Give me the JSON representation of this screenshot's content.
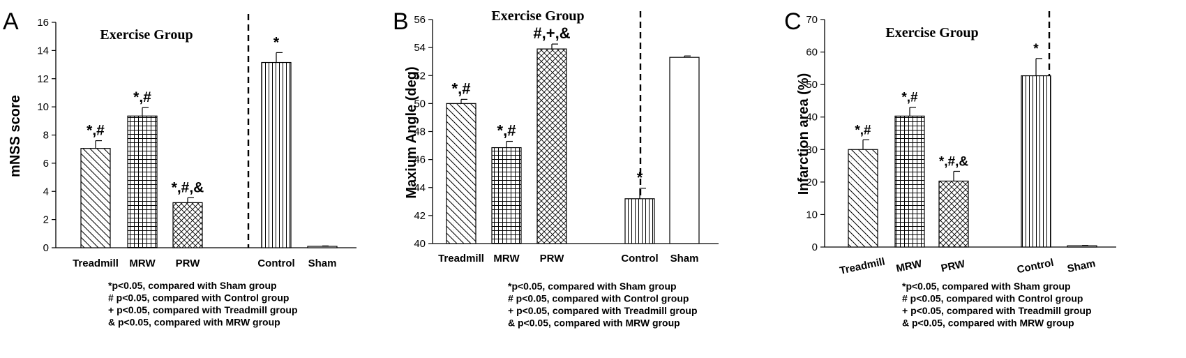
{
  "footnotes": [
    "*p<0.05, compared with Sham group",
    "# p<0.05, compared with Control group",
    "+ p<0.05, compared with Treadmill group",
    "& p<0.05, compared with MRW group"
  ],
  "chart_data": [
    {
      "panel": "A",
      "type": "bar",
      "title": "",
      "group_title": "Exercise Group",
      "ylabel": "mNSS score",
      "xlabel": "",
      "ylim": [
        0,
        16
      ],
      "yticks": [
        0,
        2,
        4,
        6,
        8,
        10,
        12,
        14,
        16
      ],
      "categories": [
        "Treadmill",
        "MRW",
        "PRW",
        "Control",
        "Sham"
      ],
      "values": [
        7.05,
        9.35,
        3.2,
        13.15,
        0.1
      ],
      "errors": [
        0.55,
        0.6,
        0.35,
        0.7,
        0.03
      ],
      "significance": [
        "*,#",
        "*,#",
        "*,#,&",
        "*",
        ""
      ],
      "patterns": [
        "diag",
        "grid",
        "crosshatch",
        "vert",
        "none"
      ]
    },
    {
      "panel": "B",
      "type": "bar",
      "title": "",
      "group_title": "Exercise Group",
      "ylabel": "Maxium Angle (deg)",
      "xlabel": "",
      "ylim": [
        40,
        56
      ],
      "yticks": [
        40,
        42,
        44,
        46,
        48,
        50,
        52,
        54,
        56
      ],
      "categories": [
        "Treadmill",
        "MRW",
        "PRW",
        "Control",
        "Sham"
      ],
      "values": [
        50.0,
        46.85,
        53.9,
        43.2,
        53.3
      ],
      "errors": [
        0.3,
        0.45,
        0.35,
        0.75,
        0.1
      ],
      "significance": [
        "*,#",
        "*,#",
        "#,+,&",
        "*",
        ""
      ],
      "patterns": [
        "diag",
        "grid",
        "crosshatch",
        "vert",
        "none"
      ]
    },
    {
      "panel": "C",
      "type": "bar",
      "title": "",
      "group_title": "Exercise Group",
      "ylabel": "Infarction area (%)",
      "xlabel": "",
      "ylim": [
        0,
        70
      ],
      "yticks": [
        0,
        10,
        20,
        30,
        40,
        50,
        60,
        70
      ],
      "categories": [
        "Treadmill",
        "MRW",
        "PRW",
        "Control",
        "Sham"
      ],
      "values": [
        30.0,
        40.3,
        20.3,
        52.7,
        0.4
      ],
      "errors": [
        3.0,
        2.7,
        3.0,
        5.3,
        0.1
      ],
      "significance": [
        "*,#",
        "*,#",
        "*,#,&",
        "*",
        ""
      ],
      "patterns": [
        "diag",
        "grid",
        "crosshatch",
        "vert",
        "none"
      ]
    }
  ]
}
